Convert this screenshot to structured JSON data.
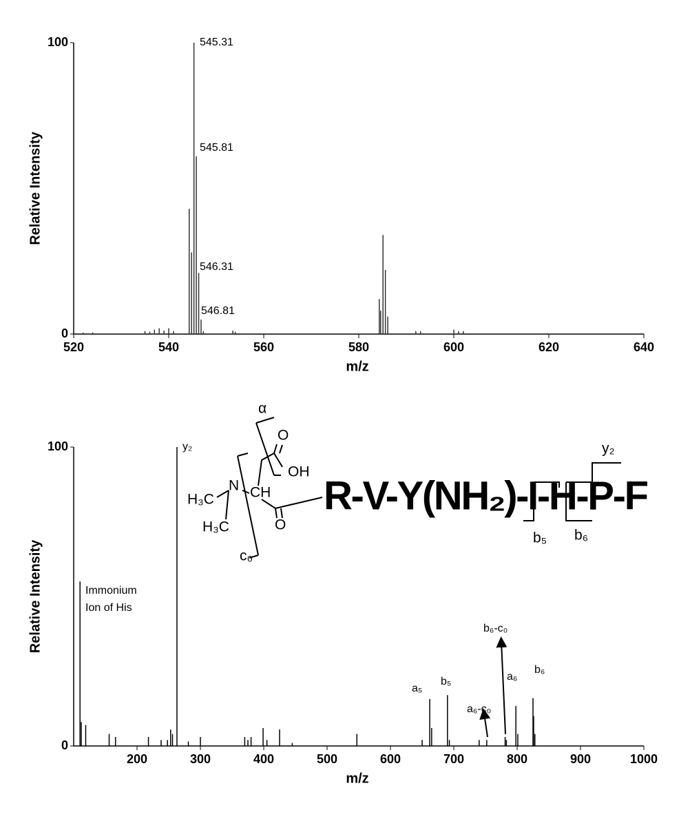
{
  "chart_data": [
    {
      "type": "bar",
      "xlabel": "m/z",
      "ylabel": "Relative Intensity",
      "color": "#333333",
      "x": [
        522,
        524,
        535,
        536,
        537,
        538,
        539,
        540,
        541,
        544.31,
        544.81,
        545.31,
        545.81,
        546.31,
        546.81,
        547.3,
        553.5,
        554,
        584.31,
        584.6,
        585.1,
        585.6,
        586.1,
        592,
        593,
        600,
        601,
        602
      ],
      "values": [
        0.5,
        0.5,
        1,
        0.8,
        1.5,
        2,
        1.2,
        2,
        1,
        43,
        28,
        100,
        61,
        21,
        5,
        1,
        1.2,
        0.8,
        12,
        8,
        34,
        22,
        6,
        1,
        1,
        1.5,
        1,
        1
      ],
      "xlim": [
        520,
        640
      ],
      "xticks": [
        520,
        540,
        560,
        580,
        600,
        620,
        640
      ],
      "ylim": [
        0,
        100
      ],
      "yticks": [
        0,
        100
      ],
      "annotations": [
        {
          "text": "545.31",
          "x": 545.31
        },
        {
          "text": "545.81",
          "x": 545.81
        },
        {
          "text": "546.31",
          "x": 546.31
        },
        {
          "text": "546.81",
          "x": 546.81
        }
      ]
    },
    {
      "type": "bar",
      "xlabel": "m/z",
      "ylabel": "Relative Intensity",
      "color": "#000000",
      "x": [
        110,
        112,
        119,
        156,
        166,
        218,
        238,
        248,
        253,
        256,
        263,
        281,
        300,
        370,
        375,
        380,
        399,
        405,
        425,
        445,
        547,
        650,
        662,
        665,
        690,
        693,
        740,
        752,
        781,
        783,
        798,
        801,
        825,
        826,
        828
      ],
      "values": [
        55,
        8,
        7,
        4,
        3,
        3,
        2,
        2,
        5.5,
        4,
        100,
        1.5,
        3,
        3,
        2,
        3,
        6,
        2,
        5.5,
        1,
        4,
        2,
        15.7,
        6,
        17,
        2,
        2,
        2,
        3,
        2,
        13.4,
        4,
        16,
        10,
        4
      ],
      "xlim": [
        100,
        1000
      ],
      "xticks": [
        200,
        300,
        400,
        500,
        600,
        700,
        800,
        900,
        1000
      ],
      "ylim": [
        0,
        100
      ],
      "yticks": [
        0,
        100
      ],
      "annotations": [
        {
          "text": "y₂",
          "x": 263
        },
        {
          "text": [
            "Immonium",
            "Ion of His"
          ],
          "x": 110
        },
        {
          "text": "a₅",
          "x": 662
        },
        {
          "text": "b₅",
          "x": 690
        },
        {
          "text": "a₆-c₀",
          "x": 752
        },
        {
          "text": "b₆-c₀",
          "x": 781
        },
        {
          "text": "a₆",
          "x": 798
        },
        {
          "text": "b₆",
          "x": 825
        }
      ]
    }
  ],
  "structure": {
    "labels": [
      "α",
      "O",
      "OH",
      "H₃C",
      "N",
      "CH",
      "H₃C",
      "O",
      "c₀",
      "y₂",
      "b₅",
      "b₆"
    ],
    "sequence": "R-V-Y(NH₂)-I-H-P-F"
  }
}
